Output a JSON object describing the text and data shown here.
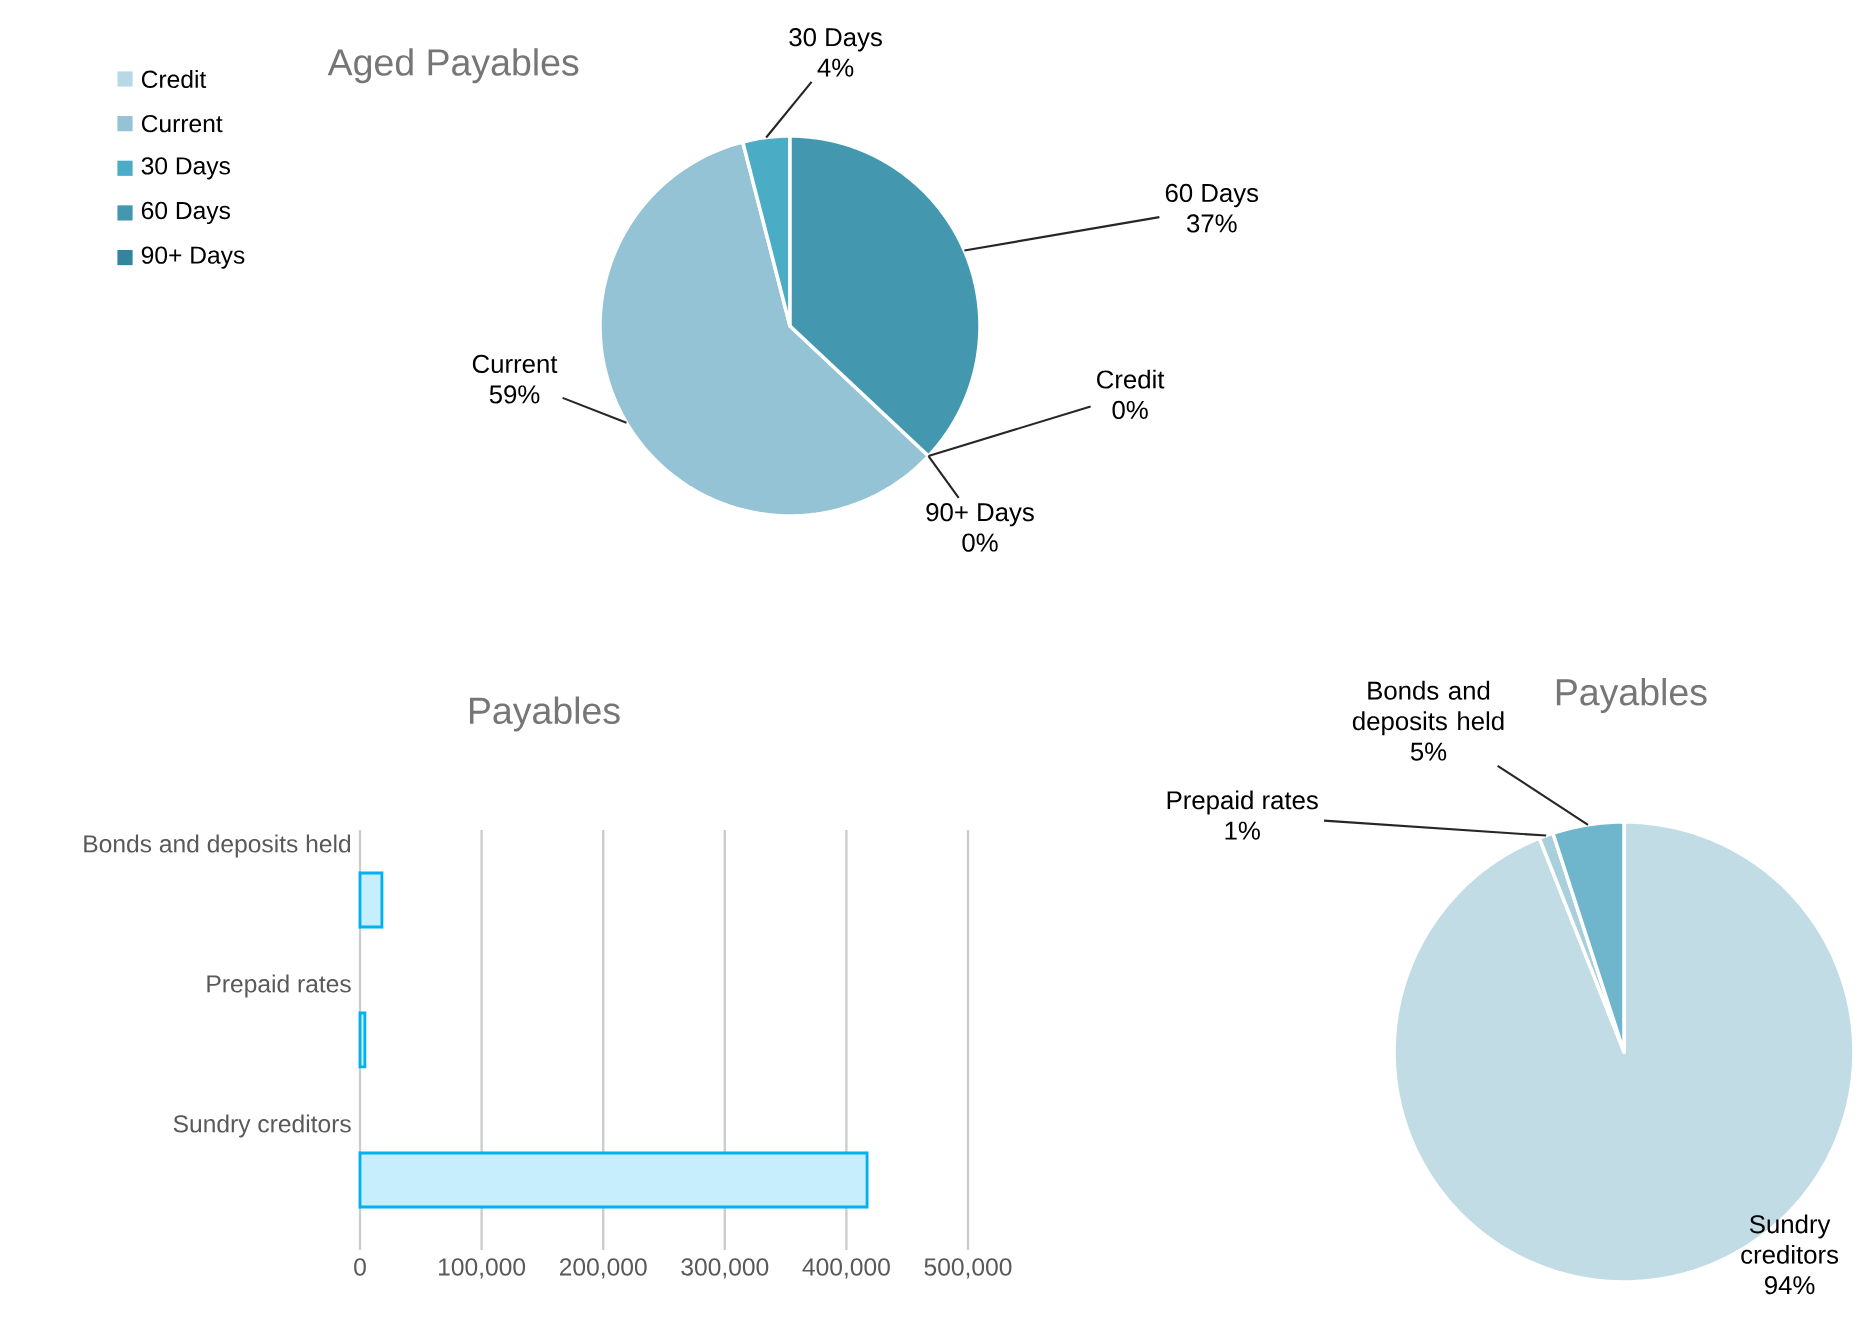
{
  "chart_data": [
    {
      "type": "pie",
      "title": "Aged Payables",
      "categories": [
        "Credit",
        "Current",
        "30 Days",
        "60 Days",
        "90+ Days"
      ],
      "values": [
        0,
        59,
        4,
        37,
        0
      ],
      "value_labels": [
        "0%",
        "59%",
        "4%",
        "37%",
        "0%"
      ],
      "colors": [
        "#b7d9e6",
        "#93c3d4",
        "#4bacc6",
        "#4398b0",
        "#31859c"
      ],
      "legend": "top left"
    },
    {
      "type": "bar",
      "title": "Payables",
      "orientation": "horizontal",
      "categories": [
        "Bonds and deposits held",
        "Prepaid rates",
        "Sundry creditors"
      ],
      "values": [
        18000,
        4000,
        417000
      ],
      "color": "#00b0f0",
      "xlim": [
        0,
        500000
      ],
      "xticks": [
        0,
        {
          "value": 100000,
          "label": "100,000"
        },
        {
          "value": 200000,
          "label": "200,000"
        },
        {
          "value": 300000,
          "label": "300,000"
        },
        {
          "value": 400000,
          "label": "400,000"
        },
        {
          "value": 500000,
          "label": "500,000"
        }
      ],
      "grid": "x"
    },
    {
      "type": "pie",
      "title": "Payables",
      "categories": [
        "Sundry creditors",
        "Prepaid rates",
        "Bonds and deposits held"
      ],
      "values": [
        94,
        1,
        5
      ],
      "value_labels": [
        "94%",
        "1%",
        "5%"
      ],
      "colors": [
        "#c2dce5",
        "#a8cfdc",
        "#6fb6cc"
      ]
    }
  ]
}
